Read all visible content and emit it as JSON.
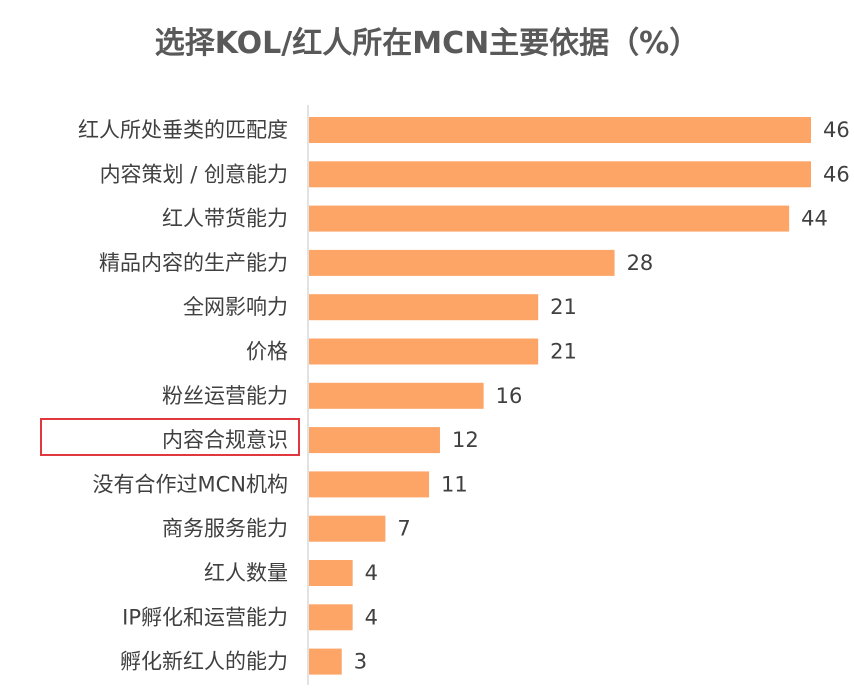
{
  "chart_data": {
    "type": "bar",
    "orientation": "horizontal",
    "title": "选择KOL/红人所在MCN主要依据（%）",
    "categories": [
      "红人所处垂类的匹配度",
      "内容策划 / 创意能力",
      "红人带货能力",
      "精品内容的生产能力",
      "全网影响力",
      "价格",
      "粉丝运营能力",
      "内容合规意识",
      "没有合作过MCN机构",
      "商务服务能力",
      "红人数量",
      "IP孵化和运营能力",
      "孵化新红人的能力"
    ],
    "values": [
      46,
      46,
      44,
      28,
      21,
      21,
      16,
      12,
      11,
      7,
      4,
      4,
      3
    ],
    "highlighted_category": "内容合规意识",
    "xlim": [
      0,
      46
    ],
    "grid": false,
    "legend": "none",
    "colors": {
      "bar": "#FCA567",
      "axis": "#d9d9d9",
      "highlight": "#e0383e",
      "title": "#595959",
      "text": "#404040"
    }
  }
}
